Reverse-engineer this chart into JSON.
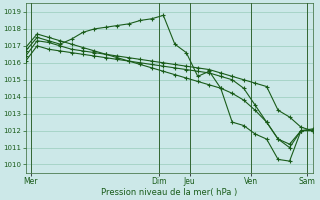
{
  "xlabel": "Pression niveau de la mer( hPa )",
  "bg_color": "#cce8e8",
  "grid_color": "#99ccbb",
  "line_color": "#1a5c1a",
  "vline_color": "#336633",
  "ylim": [
    1009.5,
    1019.5
  ],
  "yticks": [
    1010,
    1011,
    1012,
    1013,
    1014,
    1015,
    1016,
    1017,
    1018,
    1019
  ],
  "xlim": [
    0,
    28
  ],
  "day_x": [
    0.5,
    13,
    16,
    22,
    27.5
  ],
  "day_labels": [
    "Mer",
    "Dim",
    "Jeu",
    "Ven",
    "Sam"
  ],
  "vline_x": [
    0.5,
    13,
    16,
    22,
    27.5
  ],
  "series": [
    [
      1016.7,
      1017.5,
      1017.3,
      1017.1,
      1017.4,
      1017.8,
      1018.0,
      1018.1,
      1018.2,
      1018.3,
      1018.5,
      1018.6,
      1018.8,
      1017.1,
      1016.6,
      1015.2,
      1015.5,
      1014.5,
      1012.5,
      1012.3,
      1011.8,
      1011.5,
      1010.3,
      1010.2,
      1012.0,
      1012.1
    ],
    [
      1016.4,
      1017.3,
      1017.2,
      1017.0,
      1016.8,
      1016.7,
      1016.6,
      1016.5,
      1016.4,
      1016.3,
      1016.2,
      1016.1,
      1016.0,
      1015.9,
      1015.8,
      1015.7,
      1015.6,
      1015.4,
      1015.2,
      1015.0,
      1014.8,
      1014.6,
      1013.2,
      1012.8,
      1012.2,
      1012.0
    ],
    [
      1016.1,
      1017.0,
      1016.8,
      1016.7,
      1016.6,
      1016.5,
      1016.4,
      1016.3,
      1016.2,
      1016.1,
      1016.0,
      1015.9,
      1015.8,
      1015.7,
      1015.6,
      1015.5,
      1015.4,
      1015.2,
      1015.0,
      1014.5,
      1013.5,
      1012.5,
      1011.5,
      1011.0,
      1012.0,
      1012.0
    ],
    [
      1016.9,
      1017.7,
      1017.5,
      1017.3,
      1017.1,
      1016.9,
      1016.7,
      1016.5,
      1016.3,
      1016.1,
      1015.9,
      1015.7,
      1015.5,
      1015.3,
      1015.1,
      1014.9,
      1014.7,
      1014.5,
      1014.2,
      1013.8,
      1013.2,
      1012.5,
      1011.5,
      1011.2,
      1012.0,
      1012.0
    ]
  ]
}
